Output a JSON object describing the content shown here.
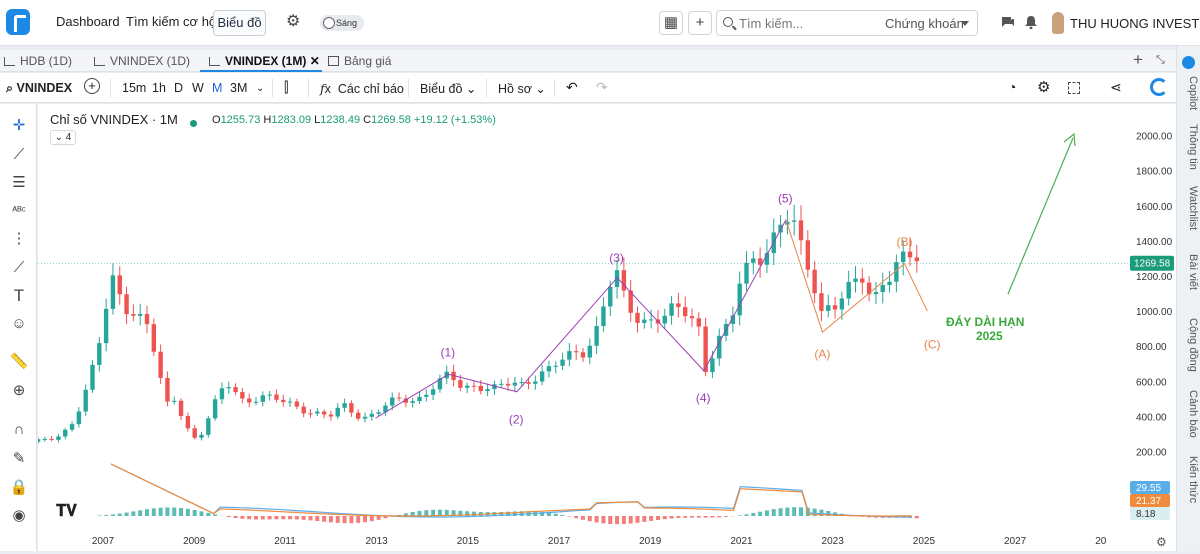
{
  "topbar": {
    "nav": [
      "Dashboard",
      "Tìm kiếm cơ hội"
    ],
    "chart_button": "Biểu đồ",
    "theme_toggle": "Sáng",
    "search_placeholder": "Tìm kiếm...",
    "search_scope": "Chứng khoán",
    "user_name": "THU HUONG INVEST"
  },
  "tabs": [
    {
      "label": "HDB (1D)"
    },
    {
      "label": "VNINDEX (1D)"
    },
    {
      "label": "VNINDEX (1M)"
    },
    {
      "label": "Bảng giá"
    }
  ],
  "toolbar": {
    "symbol": "VNINDEX",
    "intervals": [
      "15m",
      "1h",
      "D",
      "W",
      "M",
      "3M"
    ],
    "indicators": "Các chỉ báo",
    "chart_type": "Biểu đồ",
    "profile": "Hồ sơ"
  },
  "right_panel": [
    "Copilot",
    "Thông tin",
    "Watchlist",
    "Bài viết",
    "Cộng đồng",
    "Cảnh báo",
    "Kiến thức"
  ],
  "legend": {
    "title": "Chỉ số VNINDEX · 1M",
    "o_label": "O",
    "o": "1255.73",
    "h_label": "H",
    "h": "1283.09",
    "l_label": "L",
    "l": "1238.49",
    "c_label": "C",
    "c": "1269.58",
    "change": "+19.12 (+1.53%)",
    "collapsed_count": "4"
  },
  "colors": {
    "up": "#26a69a",
    "down": "#ef5350",
    "wave_purple": "#9c3bb5",
    "wave_orange": "#e8834a",
    "arrow_green": "#4caf50",
    "macd_blue": "#5aaee8",
    "macd_orange": "#f08a3c"
  },
  "chart_data": {
    "type": "candlestick",
    "y_ticks": [
      "200.00",
      "400.00",
      "600.00",
      "800.00",
      "1000.00",
      "1200.00",
      "1400.00",
      "1600.00",
      "1800.00",
      "2000.00"
    ],
    "ylim": [
      140,
      2100
    ],
    "x_ticks": [
      "2007",
      "2009",
      "2011",
      "2013",
      "2015",
      "2017",
      "2019",
      "2021",
      "2023",
      "2025",
      "2027",
      "20"
    ],
    "xlim": [
      2005.6,
      2029.5
    ],
    "last_price_label": "1269.58",
    "series": [
      {
        "name": "VNINDEX",
        "points": [
          [
            2005.6,
            255
          ],
          [
            2006.0,
            270
          ],
          [
            2006.3,
            350
          ],
          [
            2006.6,
            510
          ],
          [
            2006.9,
            750
          ],
          [
            2007.1,
            1000
          ],
          [
            2007.2,
            1170
          ],
          [
            2007.5,
            1060
          ],
          [
            2007.8,
            990
          ],
          [
            2008.0,
            920
          ],
          [
            2008.2,
            700
          ],
          [
            2008.4,
            450
          ],
          [
            2008.6,
            500
          ],
          [
            2008.9,
            330
          ],
          [
            2009.1,
            260
          ],
          [
            2009.4,
            420
          ],
          [
            2009.6,
            530
          ],
          [
            2009.8,
            580
          ],
          [
            2010.1,
            500
          ],
          [
            2010.5,
            510
          ],
          [
            2010.9,
            480
          ],
          [
            2011.2,
            470
          ],
          [
            2011.6,
            430
          ],
          [
            2012.0,
            390
          ],
          [
            2012.3,
            460
          ],
          [
            2012.7,
            400
          ],
          [
            2013.0,
            420
          ],
          [
            2013.4,
            480
          ],
          [
            2013.8,
            500
          ],
          [
            2014.0,
            520
          ],
          [
            2014.3,
            580
          ],
          [
            2014.6,
            620
          ],
          [
            2014.9,
            560
          ],
          [
            2015.2,
            590
          ],
          [
            2015.6,
            560
          ],
          [
            2015.9,
            570
          ],
          [
            2016.2,
            580
          ],
          [
            2016.6,
            660
          ],
          [
            2016.9,
            680
          ],
          [
            2017.2,
            720
          ],
          [
            2017.6,
            780
          ],
          [
            2017.9,
            950
          ],
          [
            2018.1,
            1150
          ],
          [
            2018.3,
            1180
          ],
          [
            2018.5,
            1000
          ],
          [
            2018.8,
            950
          ],
          [
            2019.1,
            980
          ],
          [
            2019.5,
            990
          ],
          [
            2019.9,
            960
          ],
          [
            2020.1,
            900
          ],
          [
            2020.2,
            660
          ],
          [
            2020.5,
            850
          ],
          [
            2020.8,
            920
          ],
          [
            2021.0,
            1150
          ],
          [
            2021.3,
            1300
          ],
          [
            2021.6,
            1400
          ],
          [
            2021.9,
            1500
          ],
          [
            2022.1,
            1520
          ],
          [
            2022.3,
            1340
          ],
          [
            2022.6,
            1180
          ],
          [
            2022.8,
            1000
          ],
          [
            2022.9,
            1050
          ],
          [
            2023.1,
            1050
          ],
          [
            2023.4,
            1100
          ],
          [
            2023.7,
            1180
          ],
          [
            2023.9,
            1060
          ],
          [
            2024.1,
            1200
          ],
          [
            2024.4,
            1260
          ],
          [
            2024.7,
            1280
          ],
          [
            2024.9,
            1269.58
          ]
        ]
      }
    ],
    "wave_labels": [
      {
        "label": "(1)",
        "x": 2014.6,
        "y": 660
      },
      {
        "label": "(2)",
        "x": 2016.1,
        "y": 520
      },
      {
        "label": "(3)",
        "x": 2018.3,
        "y": 1200
      },
      {
        "label": "(4)",
        "x": 2020.2,
        "y": 640
      },
      {
        "label": "(5)",
        "x": 2022.0,
        "y": 1540
      },
      {
        "label": "(A)",
        "x": 2022.8,
        "y": 870
      },
      {
        "label": "(B)",
        "x": 2024.6,
        "y": 1290
      },
      {
        "label": "(C)",
        "x": 2025.2,
        "y": 900
      }
    ],
    "annotation": {
      "line1": "ĐÁY DÀI HẠN",
      "line2": "2025"
    },
    "macd_labels": [
      "29.55",
      "21.37",
      "8.18"
    ]
  }
}
